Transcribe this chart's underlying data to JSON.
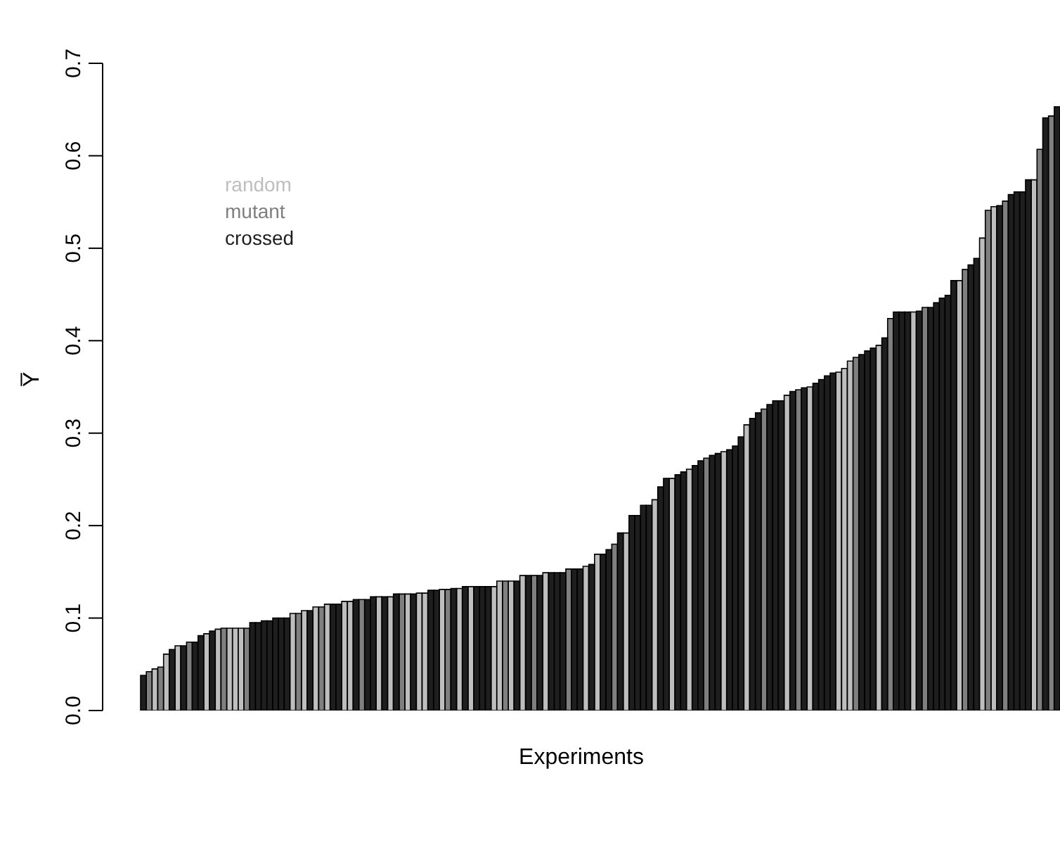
{
  "chart_data": {
    "type": "bar",
    "xlabel": "Experiments",
    "ylabel": "Y̅",
    "categories": [
      null,
      null,
      null,
      null,
      null,
      null,
      null,
      null,
      null,
      null,
      null,
      null,
      null,
      null,
      null,
      null,
      null,
      null,
      null,
      null,
      null,
      null,
      null,
      null,
      null,
      null,
      null,
      null,
      null,
      null,
      null,
      null,
      null,
      null,
      null,
      null,
      null,
      null,
      null,
      null,
      null,
      null,
      null,
      null,
      null,
      null,
      null,
      null,
      null,
      null,
      null,
      null,
      null,
      null,
      null,
      null,
      null,
      null,
      null,
      null,
      null,
      null,
      null,
      null,
      null,
      null,
      null,
      null,
      null,
      null,
      null,
      null,
      null,
      null,
      null,
      null,
      null,
      null,
      null,
      null,
      null,
      null,
      null,
      null,
      null,
      null,
      null,
      null,
      null,
      null,
      null,
      null,
      null,
      null,
      null,
      null,
      null,
      null,
      null,
      null,
      null,
      null,
      null,
      null,
      null,
      null,
      null,
      null,
      null,
      null,
      null,
      null,
      null,
      null,
      null,
      null,
      null,
      null,
      null,
      null,
      null,
      null,
      null,
      null,
      null,
      null,
      null,
      null,
      null,
      null,
      null,
      null,
      null,
      null,
      null,
      null,
      null,
      null,
      null,
      null,
      null,
      null,
      null,
      null,
      null,
      null,
      null,
      null,
      null,
      null,
      null,
      null,
      null,
      null,
      null,
      null,
      null,
      null,
      null,
      null
    ],
    "stacked": true,
    "series": [
      {
        "name": "random",
        "color": "#bebebe",
        "values": [
          null,
          null,
          0.045,
          null,
          0.061,
          null,
          0.07,
          null,
          null,
          null,
          null,
          0.083,
          null,
          0.088,
          null,
          0.089,
          0.089,
          0.089,
          null,
          null,
          null,
          null,
          null,
          null,
          null,
          null,
          0.105,
          null,
          0.108,
          null,
          0.112,
          null,
          0.115,
          null,
          null,
          0.118,
          0.118,
          null,
          null,
          null,
          null,
          0.123,
          null,
          0.123,
          null,
          null,
          0.126,
          null,
          0.127,
          0.127,
          null,
          null,
          0.131,
          null,
          null,
          0.132,
          null,
          0.134,
          null,
          null,
          null,
          0.134,
          0.14,
          null,
          0.14,
          null,
          0.146,
          null,
          null,
          null,
          0.149,
          null,
          null,
          null,
          null,
          null,
          null,
          0.156,
          null,
          0.169,
          null,
          null,
          null,
          null,
          0.192,
          null,
          null,
          null,
          null,
          0.228,
          null,
          null,
          0.251,
          null,
          null,
          0.261,
          null,
          null,
          null,
          null,
          null,
          0.28,
          null,
          null,
          null,
          0.309,
          null,
          null,
          null,
          null,
          null,
          null,
          0.341,
          null,
          null,
          null,
          0.35,
          null,
          null,
          null,
          null,
          0.366,
          0.37,
          0.378,
          null,
          null,
          null,
          null,
          0.395,
          null,
          null,
          null,
          null,
          null,
          0.431,
          null,
          null,
          null,
          null,
          null,
          null,
          null,
          0.465,
          null,
          null,
          null,
          0.511,
          null,
          0.545,
          null,
          null,
          null,
          null,
          null,
          null,
          0.574,
          null,
          null,
          null,
          null
        ]
      },
      {
        "name": "mutant",
        "color": "#7f7f7f",
        "values": [
          null,
          0.042,
          null,
          0.047,
          null,
          null,
          null,
          null,
          0.074,
          null,
          null,
          null,
          null,
          null,
          0.089,
          null,
          null,
          null,
          0.089,
          null,
          null,
          null,
          null,
          null,
          null,
          null,
          null,
          0.105,
          null,
          null,
          null,
          0.112,
          null,
          null,
          null,
          null,
          null,
          null,
          0.12,
          null,
          null,
          null,
          null,
          null,
          null,
          0.126,
          null,
          null,
          null,
          null,
          null,
          null,
          null,
          0.131,
          null,
          null,
          null,
          null,
          null,
          null,
          null,
          null,
          null,
          0.14,
          null,
          null,
          null,
          null,
          0.146,
          null,
          null,
          null,
          null,
          null,
          0.153,
          null,
          null,
          null,
          null,
          null,
          null,
          null,
          0.18,
          null,
          null,
          null,
          null,
          null,
          null,
          null,
          null,
          null,
          null,
          null,
          null,
          null,
          null,
          null,
          0.273,
          null,
          null,
          null,
          null,
          null,
          null,
          null,
          null,
          null,
          0.326,
          null,
          null,
          null,
          null,
          null,
          0.347,
          null,
          null,
          null,
          null,
          null,
          null,
          null,
          null,
          null,
          0.382,
          null,
          null,
          null,
          null,
          null,
          0.424,
          null,
          null,
          null,
          null,
          null,
          0.436,
          null,
          null,
          null,
          null,
          null,
          null,
          0.477,
          null,
          null,
          null,
          0.541,
          null,
          null,
          0.551,
          null,
          null,
          null,
          null,
          null,
          0.607,
          null,
          0.643,
          null
        ]
      },
      {
        "name": "crossed",
        "color": "#1e1e1e",
        "values": [
          0.038,
          null,
          null,
          null,
          null,
          0.066,
          null,
          0.07,
          null,
          0.074,
          0.081,
          null,
          0.086,
          null,
          null,
          null,
          null,
          null,
          null,
          0.095,
          0.095,
          0.097,
          0.097,
          0.1,
          0.1,
          0.1,
          null,
          null,
          null,
          0.108,
          null,
          null,
          null,
          0.115,
          0.115,
          null,
          null,
          0.12,
          null,
          0.12,
          0.123,
          null,
          0.123,
          null,
          0.126,
          null,
          null,
          0.126,
          null,
          null,
          0.13,
          0.13,
          null,
          null,
          0.132,
          null,
          0.134,
          null,
          0.134,
          0.134,
          0.134,
          null,
          null,
          null,
          null,
          0.14,
          null,
          0.146,
          null,
          0.146,
          null,
          0.149,
          0.149,
          0.149,
          null,
          0.153,
          0.153,
          null,
          0.158,
          null,
          0.169,
          0.174,
          null,
          0.192,
          null,
          0.211,
          0.211,
          0.222,
          0.222,
          null,
          0.242,
          0.251,
          null,
          0.255,
          0.258,
          null,
          0.265,
          0.27,
          null,
          0.276,
          0.278,
          null,
          0.282,
          0.286,
          0.296,
          null,
          0.316,
          0.322,
          null,
          0.331,
          0.335,
          0.335,
          null,
          0.345,
          null,
          0.349,
          null,
          0.354,
          0.358,
          0.362,
          0.365,
          null,
          null,
          null,
          null,
          0.385,
          0.389,
          0.392,
          null,
          0.403,
          null,
          0.431,
          0.431,
          0.431,
          null,
          0.432,
          null,
          0.436,
          0.441,
          0.446,
          0.449,
          0.465,
          null,
          null,
          0.482,
          0.489,
          null,
          null,
          null,
          0.546,
          null,
          0.558,
          0.561,
          0.561,
          0.574,
          null,
          null,
          0.641,
          null,
          0.653
        ]
      }
    ],
    "ylim": [
      0,
      0.7
    ],
    "yticks": [
      {
        "value": 0,
        "label": "0.0"
      },
      0.1,
      0.2,
      0.3,
      0.4,
      0.5,
      0.6,
      0.7
    ],
    "tick_labels": "y",
    "legend": "top left",
    "grid": false
  }
}
